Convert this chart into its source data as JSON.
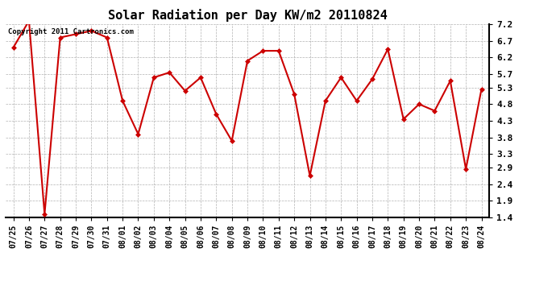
{
  "title": "Solar Radiation per Day KW/m2 20110824",
  "copyright_text": "Copyright 2011 Cartronics.com",
  "dates": [
    "07/25",
    "07/26",
    "07/27",
    "07/28",
    "07/29",
    "07/30",
    "07/31",
    "08/01",
    "08/02",
    "08/03",
    "08/04",
    "08/05",
    "08/06",
    "08/07",
    "08/08",
    "08/09",
    "08/10",
    "08/11",
    "08/12",
    "08/13",
    "08/14",
    "08/15",
    "08/16",
    "08/17",
    "08/18",
    "08/19",
    "08/20",
    "08/21",
    "08/22",
    "08/23",
    "08/24"
  ],
  "values": [
    6.5,
    7.3,
    1.5,
    6.8,
    6.9,
    7.0,
    6.8,
    4.9,
    3.9,
    5.6,
    5.75,
    5.2,
    5.6,
    4.5,
    3.7,
    6.1,
    6.4,
    6.4,
    5.1,
    2.65,
    4.9,
    5.6,
    4.9,
    5.55,
    6.45,
    4.35,
    4.8,
    4.6,
    5.5,
    2.85,
    5.25
  ],
  "line_color": "#cc0000",
  "marker": "D",
  "marker_size": 3,
  "marker_color": "#cc0000",
  "bg_color": "#ffffff",
  "grid_color": "#aaaaaa",
  "yticks": [
    1.4,
    1.9,
    2.4,
    2.9,
    3.3,
    3.8,
    4.3,
    4.8,
    5.3,
    5.7,
    6.2,
    6.7,
    7.2
  ],
  "ylim": [
    1.4,
    7.2
  ],
  "title_fontsize": 11,
  "tick_fontsize": 7,
  "copyright_fontsize": 6.5,
  "line_width": 1.5
}
